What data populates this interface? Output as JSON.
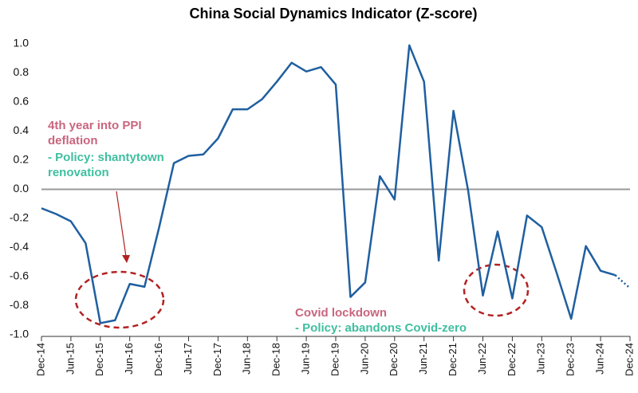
{
  "chart_data": {
    "type": "line",
    "title": "China Social Dynamics Indicator (Z-score)",
    "categories": [
      "Dec-14",
      null,
      "Jun-15",
      null,
      "Dec-15",
      null,
      "Jun-16",
      null,
      "Dec-16",
      null,
      "Jun-17",
      null,
      "Dec-17",
      null,
      "Jun-18",
      null,
      "Dec-18",
      null,
      "Jun-19",
      null,
      "Dec-19",
      null,
      "Jun-20",
      null,
      "Dec-20",
      null,
      "Jun-21",
      null,
      "Dec-21",
      null,
      "Jun-22",
      null,
      "Dec-22",
      null,
      "Jun-23",
      null,
      "Dec-23",
      null,
      "Jun-24",
      null,
      "Dec-24"
    ],
    "series": [
      {
        "color": "#1f5fa0",
        "values": [
          -0.13,
          -0.17,
          -0.22,
          -0.37,
          -0.92,
          -0.9,
          -0.65,
          -0.67,
          -0.26,
          0.18,
          0.23,
          0.24,
          0.35,
          0.55,
          0.55,
          0.62,
          0.74,
          0.87,
          0.81,
          0.84,
          0.72,
          -0.74,
          -0.64,
          0.09,
          -0.07,
          0.99,
          0.74,
          -0.49,
          0.54,
          -0.01,
          -0.73,
          -0.29,
          -0.75,
          -0.18,
          -0.26,
          -0.57,
          -0.89,
          -0.39,
          -0.56,
          -0.59,
          -0.68
        ]
      }
    ],
    "ylim": [
      -1.0,
      1.0
    ],
    "yticks": [
      {
        "value": 1.0,
        "label": "1.0"
      },
      {
        "value": 0.8,
        "label": "0.8"
      },
      {
        "value": 0.6,
        "label": "0.6"
      },
      {
        "value": 0.4,
        "label": "0.4"
      },
      {
        "value": 0.2,
        "label": "0.2"
      },
      {
        "value": 0.0,
        "label": "0.0"
      },
      {
        "value": -0.2,
        "label": "-0.2"
      },
      {
        "value": -0.4,
        "label": "-0.4"
      },
      {
        "value": -0.6,
        "label": "-0.6"
      },
      {
        "value": -0.8,
        "label": "-0.8"
      },
      {
        "value": -1.0,
        "label": "-1.0"
      }
    ],
    "annotations": [
      {
        "lines": [
          "4th year into PPI",
          "deflation"
        ],
        "color": "#c9657e"
      },
      {
        "lines": [
          "- Policy: shantytown",
          "renovation"
        ],
        "color": "#3fbfa0"
      },
      {
        "lines": [
          "Covid lockdown"
        ],
        "color": "#c9657e"
      },
      {
        "lines": [
          "- Policy: abandons Covid-zero"
        ],
        "color": "#3fbfa0"
      }
    ]
  }
}
